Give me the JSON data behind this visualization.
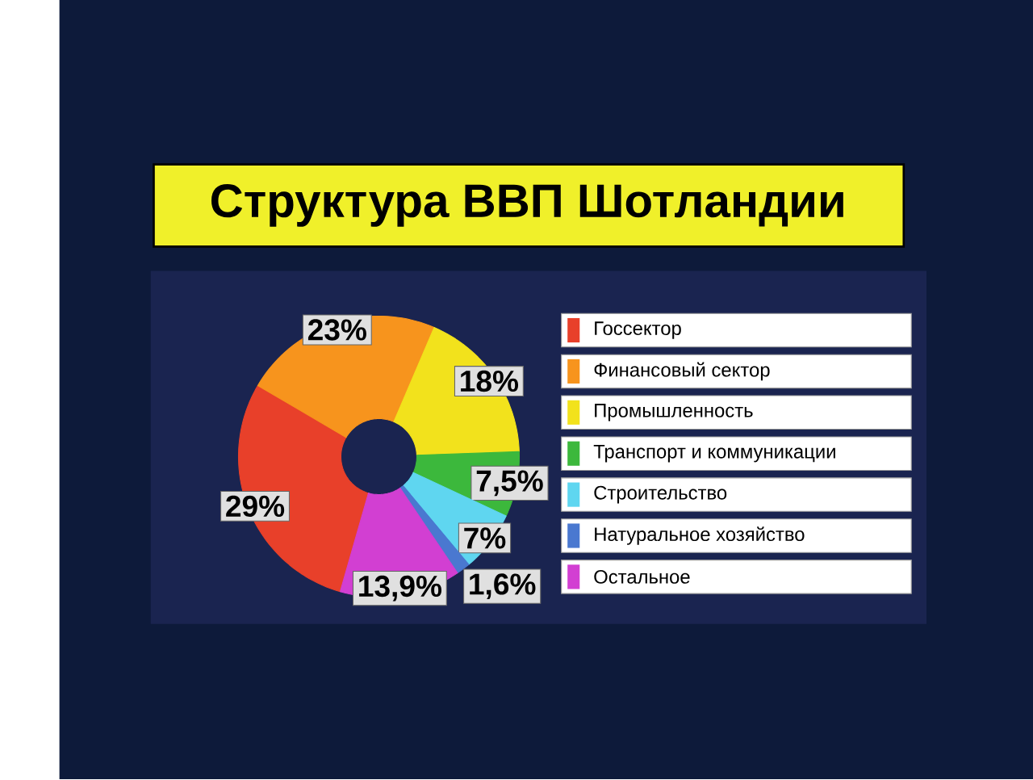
{
  "chart_data": {
    "type": "donut",
    "title": "Структура ВВП Шотландии",
    "categories": [
      "Госсектор",
      "Финансовый сектор",
      "Промышленность",
      "Транспорт и коммуникации",
      "Строительство",
      "Натуральное хозяйство",
      "Остальное"
    ],
    "values": [
      29,
      23,
      18,
      7.5,
      7,
      1.6,
      13.9
    ],
    "value_labels": [
      "29%",
      "23%",
      "18%",
      "7,5%",
      "7%",
      "1,6%",
      "13,9%"
    ],
    "colors": [
      "#e8402a",
      "#f7941d",
      "#f2e21c",
      "#3cb83c",
      "#5fd6f0",
      "#4a78d0",
      "#d23fd2"
    ],
    "legend": "right"
  }
}
